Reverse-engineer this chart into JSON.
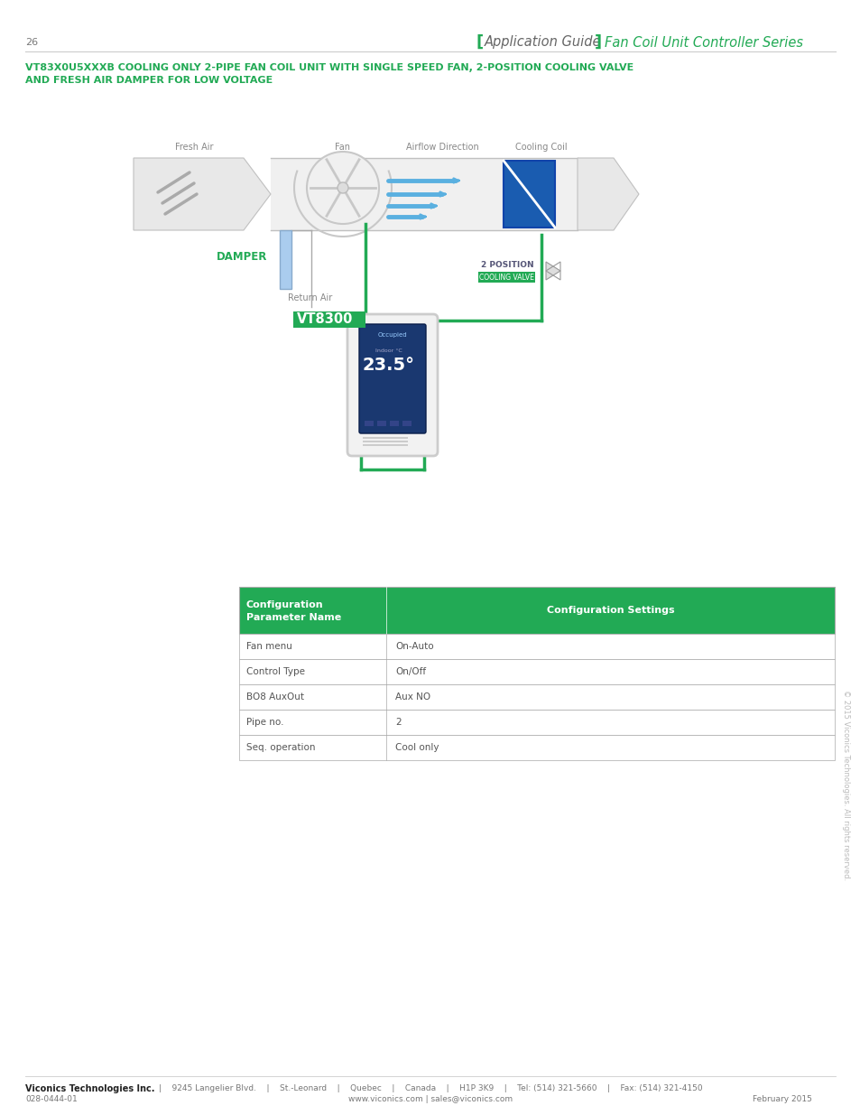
{
  "page_number": "26",
  "header_bracket_color": "#22aa55",
  "header_text1": "Application Guide",
  "header_text2": "Fan Coil Unit Controller Series",
  "header_line_color": "#cccccc",
  "title_line1": "VT83X0U5XXXB COOLING ONLY 2-PIPE FAN COIL UNIT WITH SINGLE SPEED FAN, 2-POSITION COOLING VALVE",
  "title_line2": "AND FRESH AIR DAMPER FOR LOW VOLTAGE",
  "title_color": "#22aa55",
  "table_header_bg": "#22aa55",
  "table_header_text_color": "#ffffff",
  "table_col1_header": "Configuration\nParameter Name",
  "table_col2_header": "Configuration Settings",
  "table_rows": [
    [
      "Fan menu",
      "On-Auto"
    ],
    [
      "Control Type",
      "On/Off"
    ],
    [
      "BO8 AuxOut",
      "Aux NO"
    ],
    [
      "Pipe no.",
      "2"
    ],
    [
      "Seq. operation",
      "Cool only"
    ]
  ],
  "table_border_color": "#aaaaaa",
  "table_text_color": "#555555",
  "damper_label_color": "#22aa55",
  "vt8300_label_bg": "#22aa55",
  "vt8300_label_color": "#ffffff",
  "cooling_valve_label_color": "#22aa55",
  "two_position_color": "#555577",
  "diagram_label_color": "#888888",
  "footer_line_color": "#cccccc",
  "copyright_text": "© 2015 Viconics Technologies. All rights reserved.",
  "bg_color": "#ffffff",
  "wire_color": "#22aa55",
  "duct_fill": "#e8e8e8",
  "duct_edge": "#c0c0c0",
  "fan_fill": "#f0f0f0",
  "fan_edge": "#c8c8c8",
  "coil_fill": "#1a5cb0",
  "airflow_color": "#5ab0e0",
  "damper_fill": "#aaccee",
  "damper_edge": "#7799bb",
  "ctrl_body_fill": "#f2f2f2",
  "ctrl_body_edge": "#cccccc",
  "ctrl_screen_fill": "#1a3870",
  "vt8300_green": "#22aa55"
}
